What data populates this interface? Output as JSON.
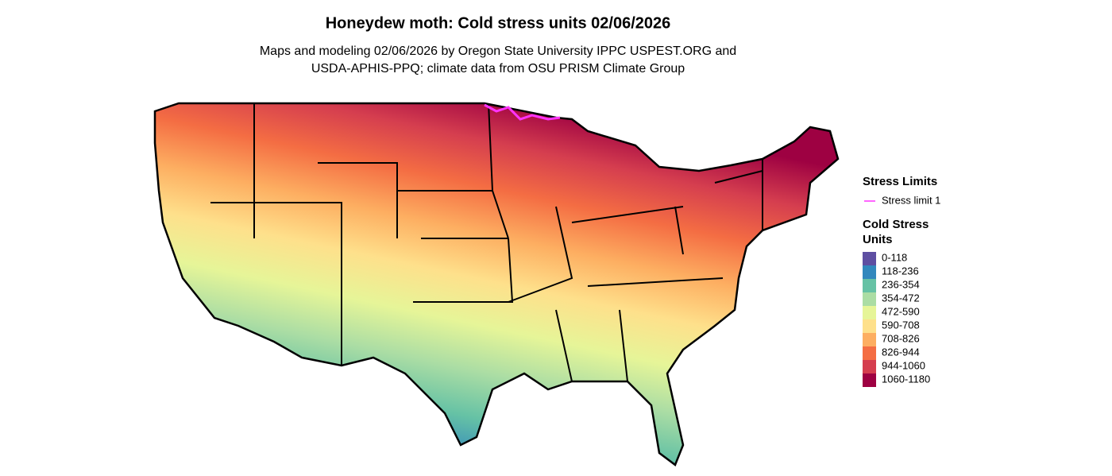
{
  "title": "Honeydew moth: Cold stress units 02/06/2026",
  "subtitle": [
    "Maps and modeling 02/06/2026 by Oregon State University IPPC USPEST.ORG and",
    "USDA-APHIS-PPQ; climate data from OSU PRISM Climate Group"
  ],
  "legend": {
    "stress_limits": {
      "title": "Stress Limits",
      "items": [
        {
          "label": "Stress limit 1",
          "color": "#ff33ff"
        }
      ]
    },
    "cold_stress_units": {
      "title": [
        "Cold Stress",
        "Units"
      ],
      "items": [
        {
          "label": "0-118",
          "color": "#5e4fa2"
        },
        {
          "label": "118-236",
          "color": "#3288bd"
        },
        {
          "label": "236-354",
          "color": "#66c2a5"
        },
        {
          "label": "354-472",
          "color": "#abdda4"
        },
        {
          "label": "472-590",
          "color": "#e6f598"
        },
        {
          "label": "590-708",
          "color": "#fee08b"
        },
        {
          "label": "708-826",
          "color": "#fdae61"
        },
        {
          "label": "826-944",
          "color": "#f46d43"
        },
        {
          "label": "944-1060",
          "color": "#d53e4f"
        },
        {
          "label": "1060-1180",
          "color": "#9e0142"
        }
      ]
    }
  }
}
